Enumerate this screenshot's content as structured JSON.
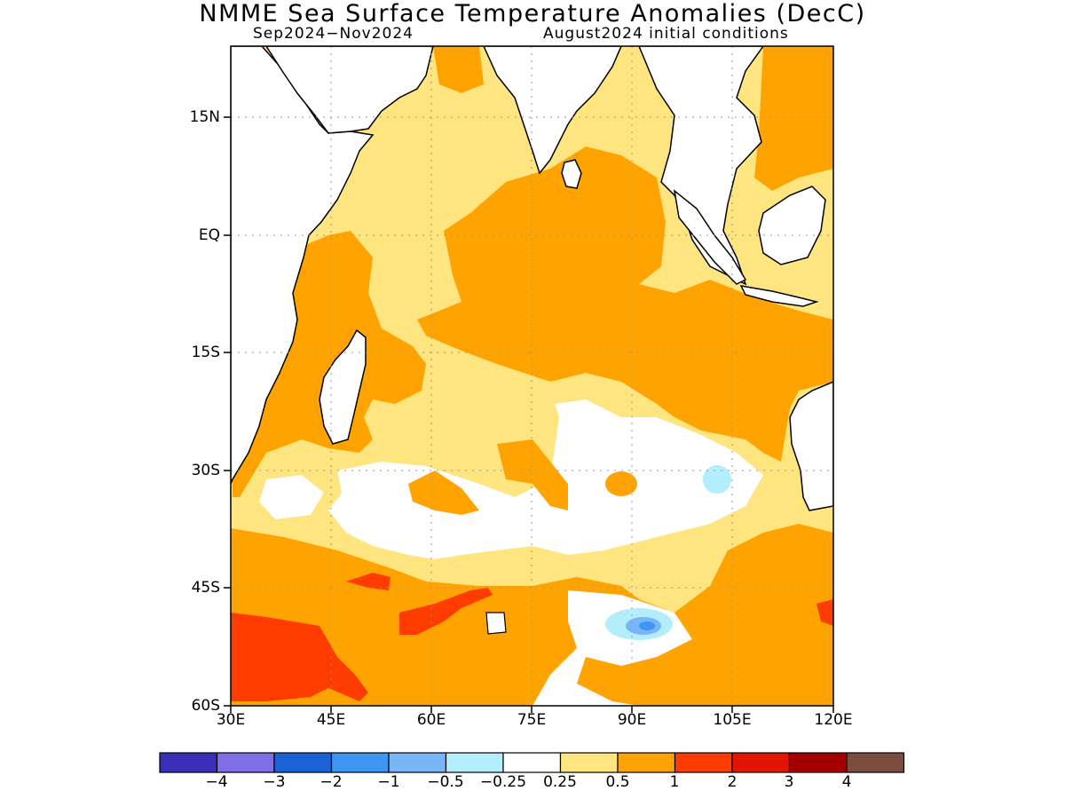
{
  "title": "NMME Sea Surface Temperature Anomalies (DecC)",
  "subtitle_left": "Sep2024−Nov2024",
  "subtitle_right": "August2024 initial conditions",
  "lat_ticks": [
    "15N",
    "EQ",
    "15S",
    "30S",
    "45S",
    "60S"
  ],
  "lon_ticks": [
    "30E",
    "45E",
    "60E",
    "75E",
    "90E",
    "105E",
    "120E"
  ],
  "colorbar": {
    "labels": [
      "−4",
      "−3",
      "−2",
      "−1",
      "−0.5",
      "−0.25",
      "0.25",
      "0.5",
      "1",
      "2",
      "3",
      "4"
    ],
    "colors": [
      "#3a2fb8",
      "#7f6ee8",
      "#1a62d6",
      "#3e95f2",
      "#78b6f8",
      "#b3eefc",
      "#ffffff",
      "#ffe57f",
      "#ffa300",
      "#ff3c00",
      "#e11500",
      "#a50000",
      "#7a4d3e"
    ]
  },
  "colors": {
    "ocean_warm_light": "#ffe57f",
    "ocean_warm": "#ffa300",
    "ocean_hot": "#ff3c00",
    "ocean_cool": "#b3eefc",
    "ocean_cooler": "#78b6f8",
    "ocean_coolest": "#3e95f2"
  }
}
